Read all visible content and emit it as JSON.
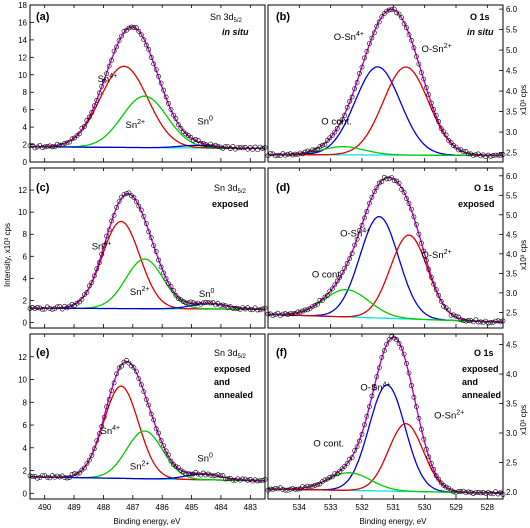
{
  "axes": {
    "xlabel": "Binding energy, eV",
    "ylabel_left": "Intensity, x10³ cps",
    "ylabel_right": "x10³ cps"
  },
  "colors": {
    "data_points": "#000000",
    "envelope": "#cc00cc",
    "sn4": "#e00000",
    "sn2": "#00cc00",
    "sn0": "#0000cc",
    "o_sn4": "#0000dd",
    "o_sn2": "#e00000",
    "o_cont": "#00cc00",
    "background": "#00e5e5"
  },
  "chart_data": [
    {
      "id": "a",
      "label": "(a)",
      "type": "line",
      "side": "left",
      "title": "Sn 3d5/2",
      "subtitle": "in situ",
      "xlim": [
        490.5,
        482.5
      ],
      "ylim": [
        0,
        18
      ],
      "xticks": [
        490,
        489,
        488,
        487,
        486,
        485,
        484,
        483
      ],
      "yticks": [
        0,
        2,
        4,
        6,
        8,
        10,
        12,
        14,
        16,
        18
      ],
      "series": [
        {
          "role": "background",
          "type": "linear",
          "values": [
            [
              490.5,
              1.75
            ],
            [
              482.5,
              1.55
            ]
          ]
        },
        {
          "role": "component",
          "name": "Sn4+",
          "color": "sn4",
          "center": 487.3,
          "amplitude": 9.3,
          "fwhm": 1.9
        },
        {
          "role": "component",
          "name": "Sn2+",
          "color": "sn2",
          "center": 486.6,
          "amplitude": 5.9,
          "fwhm": 1.8
        },
        {
          "role": "component",
          "name": "Sn0",
          "color": "sn0",
          "center": 484.8,
          "amplitude": 0.3,
          "fwhm": 1.4
        }
      ],
      "annotations": [
        {
          "text": "Sn",
          "sup": "4+",
          "x": 488.2,
          "y": 9.2
        },
        {
          "text": "Sn",
          "sup": "2+",
          "x": 487.25,
          "y": 3.9
        },
        {
          "text": "Sn",
          "sup": "0",
          "x": 484.8,
          "y": 4.3
        }
      ]
    },
    {
      "id": "b",
      "label": "(b)",
      "type": "line",
      "side": "right",
      "title": "O 1s",
      "subtitle": "in situ",
      "xlim": [
        535,
        527.5
      ],
      "ylim": [
        2.27,
        6.1
      ],
      "xticks": [
        534,
        533,
        532,
        531,
        530,
        529,
        528
      ],
      "yticks": [
        2.5,
        3.0,
        3.5,
        4.0,
        4.5,
        5.0,
        5.5,
        6.0
      ],
      "series": [
        {
          "role": "background",
          "type": "linear",
          "values": [
            [
              535,
              2.45
            ],
            [
              527.5,
              2.43
            ]
          ]
        },
        {
          "role": "component",
          "name": "O-Sn4+",
          "color": "o_sn4",
          "center": 531.5,
          "amplitude": 2.15,
          "fwhm": 1.7
        },
        {
          "role": "component",
          "name": "O-Sn2+",
          "color": "o_sn2",
          "center": 530.6,
          "amplitude": 2.15,
          "fwhm": 1.7
        },
        {
          "role": "component",
          "name": "O cont.",
          "color": "o_cont",
          "center": 532.6,
          "amplitude": 0.2,
          "fwhm": 1.6
        }
      ],
      "annotations": [
        {
          "text": "O-Sn",
          "sup": "4+",
          "x": 532.9,
          "y": 5.25
        },
        {
          "text": "O-Sn",
          "sup": "2+",
          "x": 530.1,
          "y": 4.95
        },
        {
          "text": "O cont.",
          "sup": "",
          "x": 533.3,
          "y": 3.18
        }
      ]
    },
    {
      "id": "c",
      "label": "(c)",
      "type": "line",
      "side": "left",
      "title": "Sn 3d5/2",
      "subtitle": "exposed",
      "xlim": [
        490.5,
        482.5
      ],
      "ylim": [
        -0.5,
        14
      ],
      "xticks": [
        490,
        489,
        488,
        487,
        486,
        485,
        484,
        483
      ],
      "yticks": [
        0,
        2,
        4,
        6,
        8,
        10,
        12
      ],
      "series": [
        {
          "role": "background",
          "type": "linear",
          "values": [
            [
              490.5,
              1.3
            ],
            [
              482.5,
              1.2
            ]
          ]
        },
        {
          "role": "component",
          "name": "Sn4+",
          "color": "sn4",
          "center": 487.4,
          "amplitude": 7.9,
          "fwhm": 1.5
        },
        {
          "role": "component",
          "name": "Sn2+",
          "color": "sn2",
          "center": 486.6,
          "amplitude": 4.5,
          "fwhm": 1.5
        },
        {
          "role": "component",
          "name": "Sn0",
          "color": "sn0",
          "center": 484.4,
          "amplitude": 0.5,
          "fwhm": 1.4
        }
      ],
      "annotations": [
        {
          "text": "Sn",
          "sup": "4+",
          "x": 488.4,
          "y": 6.6
        },
        {
          "text": "Sn",
          "sup": "2+",
          "x": 487.1,
          "y": 2.5
        },
        {
          "text": "Sn",
          "sup": "0",
          "x": 484.75,
          "y": 2.3
        }
      ]
    },
    {
      "id": "d",
      "label": "(d)",
      "type": "line",
      "side": "right",
      "title": "O 1s",
      "subtitle": "exposed",
      "xlim": [
        535,
        527.5
      ],
      "ylim": [
        2.1,
        6.2
      ],
      "xticks": [
        534,
        533,
        532,
        531,
        530,
        529,
        528
      ],
      "yticks": [
        2.5,
        3.0,
        3.5,
        4.0,
        4.5,
        5.0,
        5.5,
        6.0
      ],
      "series": [
        {
          "role": "background",
          "type": "linear",
          "values": [
            [
              535,
              2.45
            ],
            [
              527.5,
              2.25
            ]
          ]
        },
        {
          "role": "component",
          "name": "O-Sn4+",
          "color": "o_sn4",
          "center": 531.45,
          "amplitude": 2.6,
          "fwhm": 1.45
        },
        {
          "role": "component",
          "name": "O-Sn2+",
          "color": "o_sn2",
          "center": 530.5,
          "amplitude": 2.15,
          "fwhm": 1.4
        },
        {
          "role": "component",
          "name": "O cont.",
          "color": "o_cont",
          "center": 532.5,
          "amplitude": 0.7,
          "fwhm": 1.7
        }
      ],
      "annotations": [
        {
          "text": "O-Sn",
          "sup": "4+",
          "x": 532.7,
          "y": 4.45
        },
        {
          "text": "O-Sn",
          "sup": "2+",
          "x": 530.1,
          "y": 3.9
        },
        {
          "text": "O cont.",
          "sup": "",
          "x": 533.6,
          "y": 3.4
        }
      ]
    },
    {
      "id": "e",
      "label": "(e)",
      "type": "line",
      "side": "left",
      "title": "Sn 3d5/2",
      "subtitle": "exposed and annealed",
      "xlim": [
        490.5,
        482.5
      ],
      "ylim": [
        -0.5,
        14
      ],
      "xticks": [
        490,
        489,
        488,
        487,
        486,
        485,
        484,
        483
      ],
      "yticks": [
        0,
        2,
        4,
        6,
        8,
        10,
        12
      ],
      "series": [
        {
          "role": "background",
          "type": "linear",
          "values": [
            [
              490.5,
              1.45
            ],
            [
              482.5,
              1.1
            ]
          ]
        },
        {
          "role": "component",
          "name": "Sn4+",
          "color": "sn4",
          "center": 487.4,
          "amplitude": 8.1,
          "fwhm": 1.4
        },
        {
          "role": "component",
          "name": "Sn2+",
          "color": "sn2",
          "center": 486.6,
          "amplitude": 4.2,
          "fwhm": 1.45
        },
        {
          "role": "component",
          "name": "Sn0",
          "color": "sn0",
          "center": 484.6,
          "amplitude": 0.5,
          "fwhm": 1.4
        }
      ],
      "annotations": [
        {
          "text": "Sn",
          "sup": "4+",
          "x": 488.1,
          "y": 5.2
        },
        {
          "text": "Sn",
          "sup": "2+",
          "x": 487.1,
          "y": 2.1
        },
        {
          "text": "Sn",
          "sup": "0",
          "x": 484.8,
          "y": 2.8
        }
      ]
    },
    {
      "id": "f",
      "label": "(f)",
      "type": "line",
      "side": "right",
      "title": "O 1s",
      "subtitle": "exposed and annealed",
      "xlim": [
        535,
        527.5
      ],
      "ylim": [
        1.88,
        4.68
      ],
      "xticks": [
        534,
        533,
        532,
        531,
        530,
        529,
        528
      ],
      "yticks": [
        2.0,
        2.5,
        3.0,
        3.5,
        4.0,
        4.5
      ],
      "series": [
        {
          "role": "background",
          "type": "linear",
          "values": [
            [
              535,
              2.05
            ],
            [
              527.5,
              1.98
            ]
          ]
        },
        {
          "role": "component",
          "name": "O-Sn4+",
          "color": "o_sn4",
          "center": 531.2,
          "amplitude": 1.8,
          "fwhm": 1.35
        },
        {
          "role": "component",
          "name": "O-Sn2+",
          "color": "o_sn2",
          "center": 530.6,
          "amplitude": 1.15,
          "fwhm": 1.3
        },
        {
          "role": "component",
          "name": "O cont.",
          "color": "o_cont",
          "center": 532.4,
          "amplitude": 0.3,
          "fwhm": 1.6
        }
      ],
      "annotations": [
        {
          "text": "O-Sn",
          "sup": "4+",
          "x": 532.05,
          "y": 3.72
        },
        {
          "text": "O-Sn",
          "sup": "2+",
          "x": 529.7,
          "y": 3.25
        },
        {
          "text": "O cont.",
          "sup": "",
          "x": 533.55,
          "y": 2.77
        }
      ]
    }
  ]
}
